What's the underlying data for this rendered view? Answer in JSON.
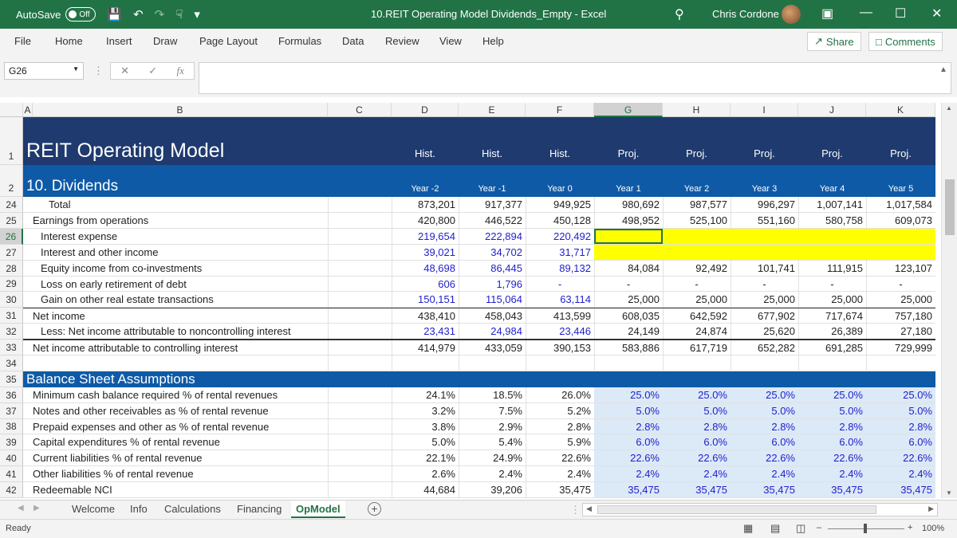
{
  "titlebar": {
    "autosave_label": "AutoSave",
    "autosave_state": "Off",
    "file_title": "10.REIT Operating Model Dividends_Empty  -  Excel",
    "user_name": "Chris Cordone"
  },
  "menu": [
    "File",
    "Home",
    "Insert",
    "Draw",
    "Page Layout",
    "Formulas",
    "Data",
    "Review",
    "View",
    "Help"
  ],
  "share_label": "Share",
  "comments_label": "Comments",
  "namebox": "G26",
  "columns": [
    "A",
    "B",
    "C",
    "D",
    "E",
    "F",
    "G",
    "H",
    "I",
    "J",
    "K"
  ],
  "header_rows": {
    "r1": {
      "num": "1",
      "title": "REIT Operating Model",
      "periods": [
        "Hist.",
        "Hist.",
        "Hist.",
        "Proj.",
        "Proj.",
        "Proj.",
        "Proj.",
        "Proj."
      ]
    },
    "r2": {
      "num": "2",
      "title": "10. Dividends",
      "years": [
        "Year -2",
        "Year -1",
        "Year 0",
        "Year 1",
        "Year 2",
        "Year 3",
        "Year 4",
        "Year 5"
      ]
    }
  },
  "rows": [
    {
      "num": "24",
      "label": "Total",
      "indent": 2,
      "vals": [
        "873,201",
        "917,377",
        "949,925",
        "980,692",
        "987,577",
        "996,297",
        "1,007,141",
        "1,017,584"
      ],
      "blue": false
    },
    {
      "num": "25",
      "label": "Earnings from operations",
      "indent": 0,
      "vals": [
        "420,800",
        "446,522",
        "450,128",
        "498,952",
        "525,100",
        "551,160",
        "580,758",
        "609,073"
      ],
      "blue": false
    },
    {
      "num": "26",
      "label": "Interest expense",
      "indent": 1,
      "vals": [
        "219,654",
        "222,894",
        "220,492",
        "",
        "",
        "",
        "",
        ""
      ],
      "blue": true,
      "yellow": true
    },
    {
      "num": "27",
      "label": "Interest and other income",
      "indent": 1,
      "vals": [
        "39,021",
        "34,702",
        "31,717",
        "",
        "",
        "",
        "",
        ""
      ],
      "blue": true,
      "yellow": true
    },
    {
      "num": "28",
      "label": "Equity income from co-investments",
      "indent": 1,
      "vals": [
        "48,698",
        "86,445",
        "89,132",
        "84,084",
        "92,492",
        "101,741",
        "111,915",
        "123,107"
      ],
      "blue": true
    },
    {
      "num": "29",
      "label": "Loss on early retirement of debt",
      "indent": 1,
      "vals": [
        "606",
        "1,796",
        "-",
        "-",
        "-",
        "-",
        "-",
        "-"
      ],
      "blue": true
    },
    {
      "num": "30",
      "label": "Gain on other real estate transactions",
      "indent": 1,
      "vals": [
        "150,151",
        "115,064",
        "63,114",
        "25,000",
        "25,000",
        "25,000",
        "25,000",
        "25,000"
      ],
      "blue": true
    },
    {
      "num": "31",
      "label": "Net income",
      "indent": 0,
      "vals": [
        "438,410",
        "458,043",
        "413,599",
        "608,035",
        "642,592",
        "677,902",
        "717,674",
        "757,180"
      ],
      "blue": false
    },
    {
      "num": "32",
      "label": "Less: Net income attributable to noncontrolling interest",
      "indent": 1,
      "vals": [
        "23,431",
        "24,984",
        "23,446",
        "24,149",
        "24,874",
        "25,620",
        "26,389",
        "27,180"
      ],
      "blue": true
    },
    {
      "num": "33",
      "label": "Net income attributable to controlling interest",
      "indent": 0,
      "vals": [
        "414,979",
        "433,059",
        "390,153",
        "583,886",
        "617,719",
        "652,282",
        "691,285",
        "729,999"
      ],
      "blue": false
    },
    {
      "num": "34",
      "label": "",
      "indent": 0,
      "vals": [
        "",
        "",
        "",
        "",
        "",
        "",
        "",
        ""
      ],
      "blue": false
    },
    {
      "num": "35",
      "label": "Balance Sheet Assumptions",
      "section": true,
      "vals": []
    },
    {
      "num": "36",
      "label": "Minimum cash balance required % of rental revenues",
      "indent": 0,
      "vals": [
        "24.1%",
        "18.5%",
        "26.0%",
        "25.0%",
        "25.0%",
        "25.0%",
        "25.0%",
        "25.0%"
      ],
      "proj_input": true
    },
    {
      "num": "37",
      "label": "Notes and other receivables as % of rental revenue",
      "indent": 0,
      "vals": [
        "3.2%",
        "7.5%",
        "5.2%",
        "5.0%",
        "5.0%",
        "5.0%",
        "5.0%",
        "5.0%"
      ],
      "proj_input": true
    },
    {
      "num": "38",
      "label": "Prepaid expenses and other as % of rental revenue",
      "indent": 0,
      "vals": [
        "3.8%",
        "2.9%",
        "2.8%",
        "2.8%",
        "2.8%",
        "2.8%",
        "2.8%",
        "2.8%"
      ],
      "proj_input": true
    },
    {
      "num": "39",
      "label": "Capital expenditures % of rental revenue",
      "indent": 0,
      "vals": [
        "5.0%",
        "5.4%",
        "5.9%",
        "6.0%",
        "6.0%",
        "6.0%",
        "6.0%",
        "6.0%"
      ],
      "proj_input": true
    },
    {
      "num": "40",
      "label": "Current liabilities % of rental revenue",
      "indent": 0,
      "vals": [
        "22.1%",
        "24.9%",
        "22.6%",
        "22.6%",
        "22.6%",
        "22.6%",
        "22.6%",
        "22.6%"
      ],
      "proj_input": true
    },
    {
      "num": "41",
      "label": "Other liabilities % of rental revenue",
      "indent": 0,
      "vals": [
        "2.6%",
        "2.4%",
        "2.4%",
        "2.4%",
        "2.4%",
        "2.4%",
        "2.4%",
        "2.4%"
      ],
      "proj_input": true
    },
    {
      "num": "42",
      "label": "Redeemable NCI",
      "indent": 0,
      "vals": [
        "44,684",
        "39,206",
        "35,475",
        "35,475",
        "35,475",
        "35,475",
        "35,475",
        "35,475"
      ],
      "proj_input": true
    }
  ],
  "sheet_tabs": [
    "Welcome",
    "Info",
    "Calculations",
    "Financing",
    "OpModel"
  ],
  "active_tab": "OpModel",
  "status": "Ready",
  "zoom": "100%",
  "colors": {
    "excel_green": "#217346",
    "header_navy": "#1f3a6e",
    "section_blue": "#0e5aa7",
    "input_blue": "#1f1fcc",
    "yellow": "#ffff00",
    "proj_fill": "#dce9f7"
  }
}
